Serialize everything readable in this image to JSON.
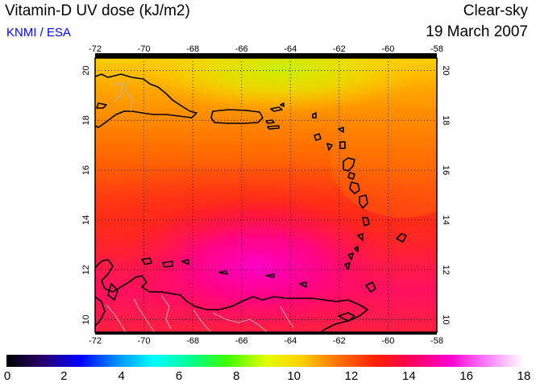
{
  "header": {
    "title": "Vitamin-D UV dose (kJ/m2)",
    "credit": "KNMI / ESA",
    "sky_condition": "Clear-sky",
    "date": "19 March 2007"
  },
  "map": {
    "lon_range": [
      -72,
      -58
    ],
    "lat_range": [
      9.5,
      20.5
    ],
    "lon_ticks": [
      "-72",
      "-70",
      "-68",
      "-66",
      "-64",
      "-62",
      "-60",
      "-58"
    ],
    "lat_ticks": [
      "10",
      "12",
      "14",
      "16",
      "18",
      "20"
    ],
    "grid": true,
    "coastline_color": "#000000",
    "border_color": "#b0b0b0"
  },
  "colorbar": {
    "min": 0,
    "max": 18,
    "labels": [
      "0",
      "2",
      "4",
      "6",
      "8",
      "10",
      "12",
      "14",
      "16",
      "18"
    ],
    "stops": [
      "#000000",
      "#2a0070",
      "#0000ff",
      "#0090ff",
      "#00ffff",
      "#00ff90",
      "#40ff00",
      "#e0ff00",
      "#ffd000",
      "#ff7000",
      "#ff2000",
      "#ff0060",
      "#ff00d0",
      "#ff80ff",
      "#ffffff"
    ]
  }
}
